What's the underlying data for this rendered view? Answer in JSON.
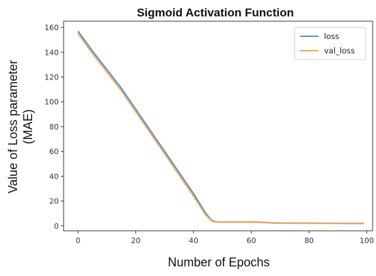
{
  "chart_data": {
    "type": "line",
    "title": "Sigmoid Activation Function",
    "xlabel": "Number of Epochs",
    "ylabel_lines": [
      "Value of Loss parameter",
      "(MAE)"
    ],
    "xlim": [
      -5,
      102
    ],
    "ylim": [
      -4,
      165
    ],
    "xticks": [
      0,
      20,
      40,
      60,
      80,
      100
    ],
    "yticks": [
      0,
      20,
      40,
      60,
      80,
      100,
      120,
      140,
      160
    ],
    "grid": false,
    "legend_position": "top-right",
    "series": [
      {
        "name": "loss",
        "color": "#5b8fbf",
        "x": [
          0,
          5,
          10,
          15,
          20,
          25,
          30,
          35,
          40,
          44,
          46,
          47,
          48,
          50,
          55,
          60,
          63,
          65,
          68,
          70,
          75,
          80,
          85,
          90,
          95,
          99
        ],
        "y": [
          157,
          141,
          126,
          111,
          94,
          77,
          60,
          43,
          26,
          11,
          5,
          3.7,
          3.2,
          3.1,
          3.1,
          3.1,
          3.0,
          2.7,
          2.3,
          2.3,
          2.2,
          2.2,
          2.1,
          2.1,
          2.0,
          2.0
        ]
      },
      {
        "name": "val_loss",
        "color": "#f5a55c",
        "x": [
          0,
          5,
          10,
          15,
          20,
          25,
          30,
          35,
          40,
          44,
          46,
          47,
          48,
          50,
          55,
          60,
          63,
          65,
          68,
          70,
          75,
          80,
          85,
          90,
          95,
          99
        ],
        "y": [
          155,
          139,
          124,
          109,
          92,
          75,
          58,
          41,
          24,
          9.5,
          4.4,
          3.3,
          3.0,
          2.9,
          2.9,
          2.9,
          2.8,
          2.5,
          2.1,
          2.1,
          2.0,
          2.0,
          1.9,
          1.9,
          1.8,
          1.8
        ]
      }
    ]
  }
}
